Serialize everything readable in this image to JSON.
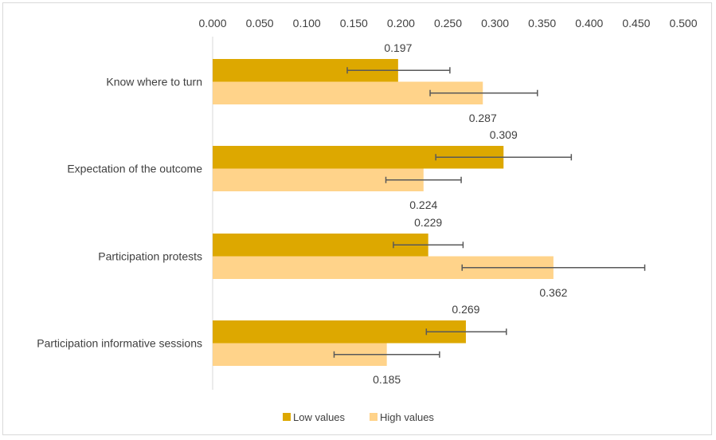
{
  "chart_data": {
    "type": "bar",
    "orientation": "horizontal",
    "title": "",
    "xlabel": "",
    "ylabel": "",
    "xlim": [
      0,
      0.5
    ],
    "x_ticks": [
      "0.000",
      "0.050",
      "0.100",
      "0.150",
      "0.200",
      "0.250",
      "0.300",
      "0.350",
      "0.400",
      "0.450",
      "0.500"
    ],
    "x_axis_position": "top",
    "grid": false,
    "legend_position": "bottom",
    "categories": [
      "Know where to turn",
      "Expectation of the outcome",
      "Participation protests",
      "Participation informative sessions"
    ],
    "series": [
      {
        "name": "Low values",
        "color": "#DDA800",
        "values": [
          0.197,
          0.309,
          0.229,
          0.269
        ],
        "labels": [
          "0.197",
          "0.309",
          "0.229",
          "0.269"
        ],
        "error_low": [
          0.143,
          0.237,
          0.192,
          0.227
        ],
        "error_high": [
          0.252,
          0.381,
          0.266,
          0.312
        ]
      },
      {
        "name": "High values",
        "color": "#FFD38A",
        "values": [
          0.287,
          0.224,
          0.362,
          0.185
        ],
        "labels": [
          "0.287",
          "0.224",
          "0.362",
          "0.185"
        ],
        "error_low": [
          0.231,
          0.184,
          0.265,
          0.129
        ],
        "error_high": [
          0.345,
          0.264,
          0.459,
          0.241
        ]
      }
    ]
  }
}
